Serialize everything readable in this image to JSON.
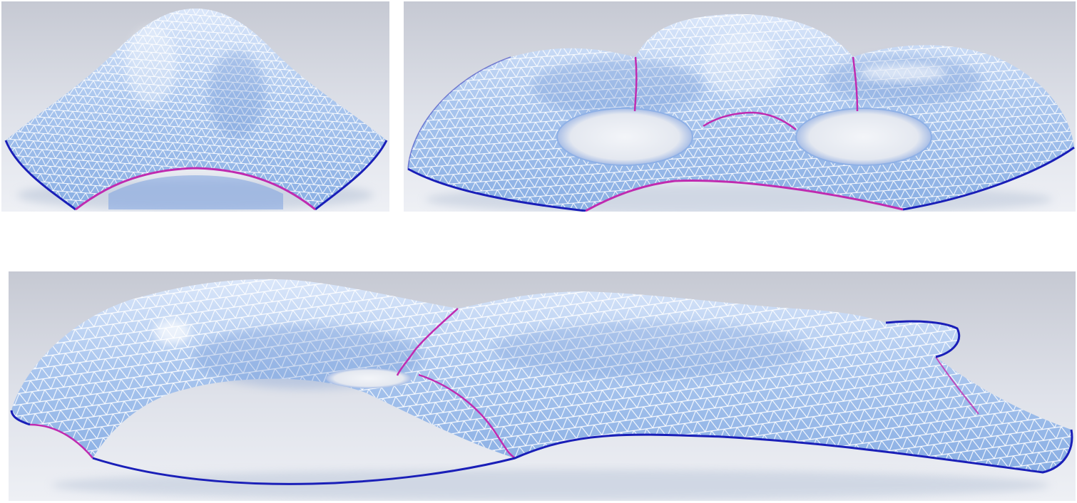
{
  "figure": {
    "panels": [
      {
        "id": "a",
        "shape": "single-dome-shell"
      },
      {
        "id": "b",
        "shape": "double-torus-shell"
      },
      {
        "id": "c",
        "shape": "free-form-shell-with-hole"
      }
    ]
  },
  "colors": {
    "background_light": "#eef0f5",
    "background_dark": "#c9ccd6",
    "shell_light": "#dce8fa",
    "shell_mid": "#a9c5ee",
    "shell_dark": "#6f96d6",
    "mesh_line": "#ffffff",
    "boundary_blue": "#1a1fb8",
    "seam_magenta": "#c02bb0",
    "highlight": "#ffffff"
  }
}
